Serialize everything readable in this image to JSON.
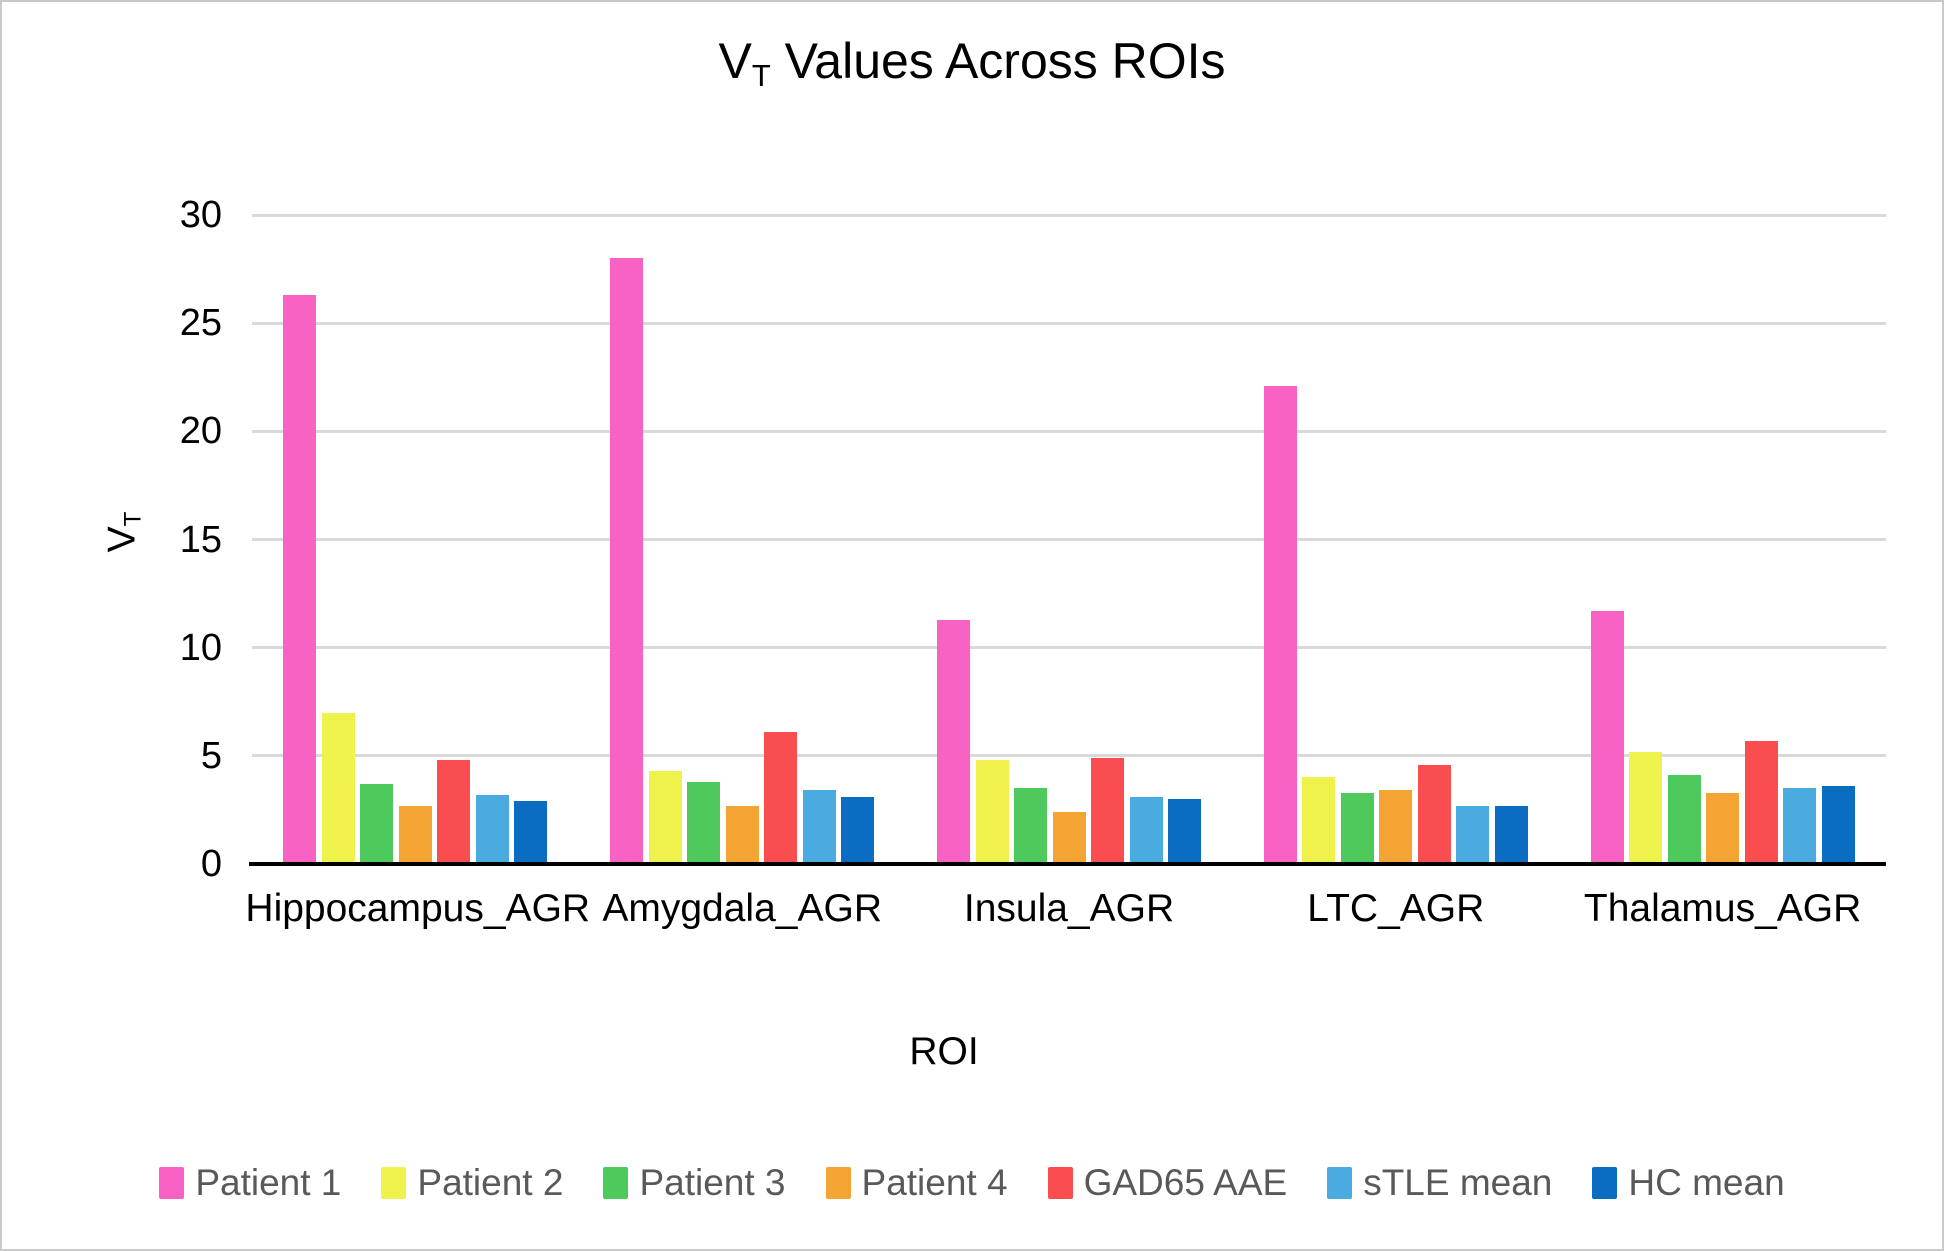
{
  "chart_data": {
    "type": "bar",
    "title": "V_T Values Across ROIs",
    "title_parts": {
      "base": "V",
      "subscript": "T",
      "rest": " Values Across ROIs"
    },
    "xlabel": "ROI",
    "ylabel": "V_T",
    "ylabel_parts": {
      "base": "V",
      "subscript": "T"
    },
    "ylim": [
      0,
      30
    ],
    "yticks": [
      0,
      5,
      10,
      15,
      20,
      25,
      30
    ],
    "grid": true,
    "legend_position": "bottom",
    "categories": [
      "Hippocampus_AGR",
      "Amygdala_AGR",
      "Insula_AGR",
      "LTC_AGR",
      "Thalamus_AGR"
    ],
    "series": [
      {
        "name": "Patient 1",
        "color": "#f962c5",
        "values": [
          26.3,
          28.0,
          11.3,
          22.1,
          11.7
        ]
      },
      {
        "name": "Patient 2",
        "color": "#eef24a",
        "values": [
          7.0,
          4.3,
          4.8,
          4.0,
          5.2
        ]
      },
      {
        "name": "Patient 3",
        "color": "#4ec95c",
        "values": [
          3.7,
          3.8,
          3.5,
          3.3,
          4.1
        ]
      },
      {
        "name": "Patient 4",
        "color": "#f4a433",
        "values": [
          2.7,
          2.7,
          2.4,
          3.4,
          3.3
        ]
      },
      {
        "name": "GAD65 AAE",
        "color": "#fa4d50",
        "values": [
          4.8,
          6.1,
          4.9,
          4.6,
          5.7
        ]
      },
      {
        "name": "sTLE mean",
        "color": "#49abdf",
        "values": [
          3.2,
          3.4,
          3.1,
          2.7,
          3.5
        ]
      },
      {
        "name": "HC mean",
        "color": "#0b6dc2",
        "values": [
          2.9,
          3.1,
          3.0,
          2.7,
          3.6
        ]
      }
    ]
  },
  "style": {
    "grid_color": "#d9d9d9",
    "axis_color": "#000000",
    "legend_text_color": "#595959",
    "canvas_border_color": "#c9c9c9"
  }
}
